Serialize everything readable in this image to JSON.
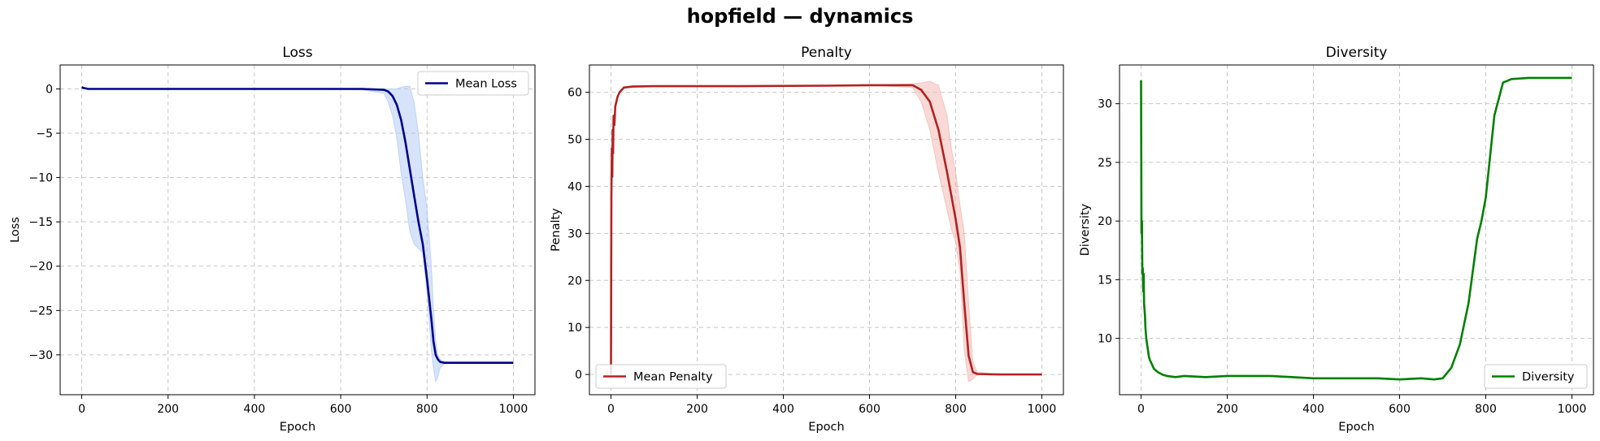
{
  "title": "hopfield — dynamics",
  "chart_data": [
    {
      "type": "line",
      "title": "Loss",
      "xlabel": "Epoch",
      "ylabel": "Loss",
      "xlim": [
        -50,
        1050
      ],
      "ylim": [
        -34.5,
        2.7
      ],
      "xticks": [
        0,
        200,
        400,
        600,
        800,
        1000
      ],
      "yticks": [
        0,
        -5,
        -10,
        -15,
        -20,
        -25,
        -30
      ],
      "grid": true,
      "legend_position": "upper right",
      "band_color": "#aec7f5",
      "series": [
        {
          "name": "Mean Loss",
          "color": "#00008b",
          "x": [
            0,
            5,
            15,
            30,
            100,
            300,
            500,
            650,
            700,
            710,
            720,
            730,
            740,
            750,
            760,
            770,
            780,
            790,
            800,
            810,
            815,
            820,
            825,
            830,
            840,
            850,
            900,
            1000
          ],
          "y": [
            0.2,
            0.1,
            0.0,
            0.0,
            0.0,
            0.0,
            0.0,
            0.0,
            -0.1,
            -0.3,
            -0.8,
            -1.8,
            -3.5,
            -6.0,
            -9.0,
            -12.0,
            -15.0,
            -17.5,
            -21.5,
            -26.0,
            -28.5,
            -30.0,
            -30.5,
            -30.8,
            -30.9,
            -30.9,
            -30.9,
            -30.9
          ],
          "band_upper": [
            0.2,
            0.1,
            0.0,
            0.0,
            0.0,
            0.0,
            0.0,
            0.0,
            0.0,
            0.0,
            0.0,
            0.0,
            0.2,
            0.3,
            0.3,
            -1.5,
            -5.0,
            -10.0,
            -13.5,
            -20.0,
            -25.0,
            -28.5,
            -30.0,
            -30.5,
            -30.8,
            -30.9,
            -30.9,
            -30.9
          ],
          "band_lower": [
            0.2,
            0.1,
            0.0,
            0.0,
            0.0,
            0.0,
            0.0,
            -0.1,
            -0.5,
            -1.5,
            -3.0,
            -5.5,
            -9.5,
            -12.5,
            -16.0,
            -17.5,
            -18.0,
            -18.5,
            -23.0,
            -29.5,
            -31.5,
            -33.0,
            -32.5,
            -31.5,
            -31.0,
            -30.9,
            -30.9,
            -30.9
          ]
        }
      ]
    },
    {
      "type": "line",
      "title": "Penalty",
      "xlabel": "Epoch",
      "ylabel": "Penalty",
      "xlim": [
        -50,
        1050
      ],
      "ylim": [
        -4.3,
        65.8
      ],
      "xticks": [
        0,
        200,
        400,
        600,
        800,
        1000
      ],
      "yticks": [
        0,
        10,
        20,
        30,
        40,
        50,
        60
      ],
      "grid": true,
      "legend_position": "lower left",
      "band_color": "#f4b4ac",
      "series": [
        {
          "name": "Mean Penalty",
          "color": "#b22222",
          "x": [
            0,
            1,
            2,
            3,
            4,
            5,
            6,
            8,
            10,
            15,
            20,
            30,
            50,
            100,
            300,
            500,
            600,
            700,
            720,
            740,
            760,
            780,
            790,
            800,
            810,
            820,
            830,
            840,
            850,
            900,
            1000
          ],
          "y": [
            0,
            38,
            48,
            42,
            52,
            47,
            55,
            53,
            57,
            59,
            60,
            61,
            61.2,
            61.3,
            61.3,
            61.4,
            61.5,
            61.5,
            60.5,
            58.0,
            52.0,
            43.0,
            38.0,
            33.0,
            27.0,
            15.0,
            4.0,
            0.5,
            0.1,
            0.0,
            0.0
          ],
          "band_upper": [
            0,
            38,
            48,
            42,
            52,
            47,
            55,
            53,
            57,
            59,
            60,
            61,
            61.2,
            61.3,
            61.3,
            61.4,
            61.5,
            61.8,
            62.0,
            62.3,
            61.5,
            55.0,
            48.0,
            43.0,
            36.0,
            30.0,
            15.0,
            2.5,
            0.5,
            0.0,
            0.0
          ],
          "band_lower": [
            0,
            38,
            48,
            42,
            52,
            47,
            55,
            53,
            57,
            59,
            60,
            61,
            61.2,
            61.3,
            61.3,
            61.4,
            61.5,
            61.0,
            58.0,
            52.0,
            43.0,
            35.0,
            31.0,
            28.0,
            22.0,
            5.0,
            -1.5,
            -1.0,
            0.0,
            0.0,
            0.0
          ]
        }
      ]
    },
    {
      "type": "line",
      "title": "Diversity",
      "xlabel": "Epoch",
      "ylabel": "Diversity",
      "xlim": [
        -50,
        1050
      ],
      "ylim": [
        5.2,
        33.3
      ],
      "xticks": [
        0,
        200,
        400,
        600,
        800,
        1000
      ],
      "yticks": [
        10,
        15,
        20,
        25,
        30
      ],
      "grid": true,
      "legend_position": "lower right",
      "series": [
        {
          "name": "Diversity",
          "color": "#008000",
          "x": [
            0,
            1,
            2,
            3,
            4,
            5,
            6,
            7,
            8,
            9,
            10,
            12,
            14,
            16,
            18,
            20,
            25,
            30,
            40,
            50,
            60,
            80,
            100,
            150,
            200,
            250,
            300,
            350,
            400,
            450,
            500,
            550,
            600,
            650,
            680,
            700,
            720,
            740,
            760,
            780,
            790,
            800,
            820,
            840,
            860,
            900,
            1000
          ],
          "y": [
            32,
            19,
            20,
            15.5,
            16,
            14,
            15.5,
            13,
            12.5,
            12,
            11,
            10,
            9.5,
            9,
            8.5,
            8.2,
            7.8,
            7.4,
            7.1,
            6.9,
            6.8,
            6.7,
            6.8,
            6.7,
            6.8,
            6.8,
            6.8,
            6.7,
            6.6,
            6.6,
            6.6,
            6.6,
            6.5,
            6.6,
            6.5,
            6.6,
            7.5,
            9.5,
            13.0,
            18.5,
            20.0,
            22.0,
            29.0,
            31.8,
            32.1,
            32.2,
            32.2
          ]
        }
      ]
    }
  ]
}
